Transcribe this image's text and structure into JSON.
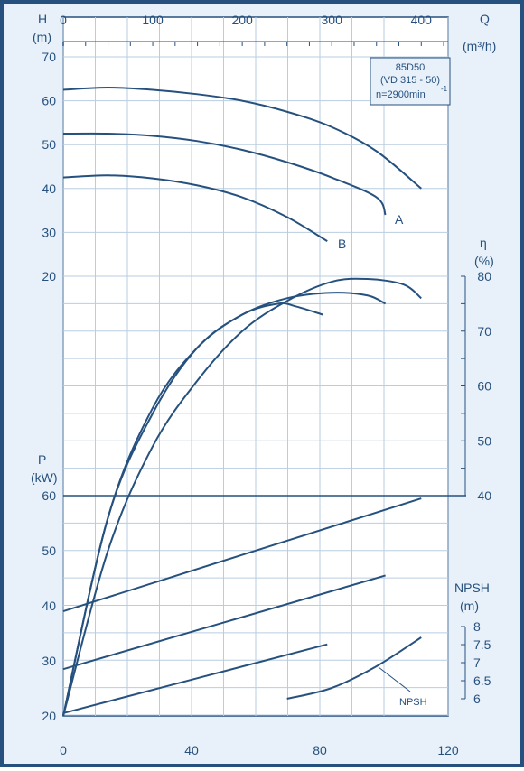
{
  "chart_data": {
    "type": "line",
    "model": "85D50",
    "model_sub": "(VD 315 - 50)",
    "speed_label": "n=2900min",
    "speed_exp": "-1",
    "colors": {
      "line": "#26517f",
      "grid": "#b9cde0",
      "bg": "#e8f1f9"
    },
    "axes": {
      "Q": {
        "label": "Q",
        "unit": "(m³/h)",
        "ticks": [
          "0",
          "100",
          "200",
          "300",
          "400"
        ],
        "range": [
          0,
          430
        ]
      },
      "H": {
        "label": "H",
        "unit": "(m)",
        "ticks": [
          "20",
          "30",
          "40",
          "50",
          "60",
          "70"
        ],
        "range": [
          20,
          70
        ]
      },
      "eta": {
        "label": "η",
        "unit": "(%)",
        "ticks": [
          "40",
          "50",
          "60",
          "70",
          "80"
        ],
        "range": [
          40,
          80
        ]
      },
      "P": {
        "label": "P",
        "unit": "(kW)",
        "ticks": [
          "20",
          "30",
          "40",
          "50",
          "60"
        ],
        "range": [
          20,
          60
        ]
      },
      "NPSH": {
        "label": "NPSH",
        "unit": "(m)",
        "ticks": [
          "6",
          "6.5",
          "7",
          "7.5",
          "8"
        ],
        "range": [
          6,
          8
        ]
      },
      "x_bottom": {
        "ticks": [
          "0",
          "40",
          "80",
          "120"
        ],
        "range": [
          0,
          120
        ]
      }
    },
    "series": {
      "H": [
        {
          "name": "",
          "points": [
            [
              0,
              62.5
            ],
            [
              50,
              63
            ],
            [
              100,
              62.5
            ],
            [
              150,
              61.5
            ],
            [
              200,
              60
            ],
            [
              250,
              57.5
            ],
            [
              300,
              54
            ],
            [
              350,
              48.5
            ],
            [
              400,
              40
            ]
          ]
        },
        {
          "name": "A",
          "points": [
            [
              0,
              52.5
            ],
            [
              50,
              52.5
            ],
            [
              100,
              52
            ],
            [
              150,
              50.8
            ],
            [
              200,
              48.8
            ],
            [
              250,
              46
            ],
            [
              300,
              42.5
            ],
            [
              350,
              38
            ],
            [
              360,
              34
            ]
          ]
        },
        {
          "name": "B",
          "points": [
            [
              0,
              42.5
            ],
            [
              50,
              43
            ],
            [
              100,
              42.3
            ],
            [
              150,
              40.7
            ],
            [
              200,
              38
            ],
            [
              250,
              33.5
            ],
            [
              295,
              28
            ]
          ]
        }
      ],
      "eta": [
        {
          "name": "",
          "points": [
            [
              0,
              0
            ],
            [
              50,
              36
            ],
            [
              100,
              55
            ],
            [
              150,
              67
            ],
            [
              200,
              73
            ],
            [
              240,
              75
            ],
            [
              260,
              74.5
            ],
            [
              290,
              73
            ]
          ]
        },
        {
          "name": "",
          "points": [
            [
              0,
              0
            ],
            [
              50,
              36
            ],
            [
              100,
              56
            ],
            [
              150,
              67
            ],
            [
              200,
              73
            ],
            [
              250,
              76
            ],
            [
              300,
              77
            ],
            [
              340,
              76.5
            ],
            [
              360,
              75
            ]
          ]
        },
        {
          "name": "",
          "points": [
            [
              0,
              0
            ],
            [
              50,
              30
            ],
            [
              100,
              49
            ],
            [
              150,
              61
            ],
            [
              200,
              70
            ],
            [
              250,
              75.5
            ],
            [
              300,
              79
            ],
            [
              340,
              79.5
            ],
            [
              380,
              78.5
            ],
            [
              400,
              76
            ]
          ]
        }
      ],
      "P": [
        {
          "name": "",
          "points": [
            [
              0,
              39
            ],
            [
              400,
              59.5
            ]
          ]
        },
        {
          "name": "",
          "points": [
            [
              0,
              28.5
            ],
            [
              360,
              45.5
            ]
          ]
        },
        {
          "name": "",
          "points": [
            [
              0,
              20.5
            ],
            [
              295,
              33
            ]
          ]
        }
      ],
      "NPSH": [
        {
          "name": "NPSH",
          "points": [
            [
              250,
              6
            ],
            [
              300,
              6.3
            ],
            [
              350,
              6.9
            ],
            [
              400,
              7.7
            ]
          ]
        }
      ]
    },
    "labels": {
      "A": "A",
      "B": "B",
      "NPSH": "NPSH"
    }
  }
}
